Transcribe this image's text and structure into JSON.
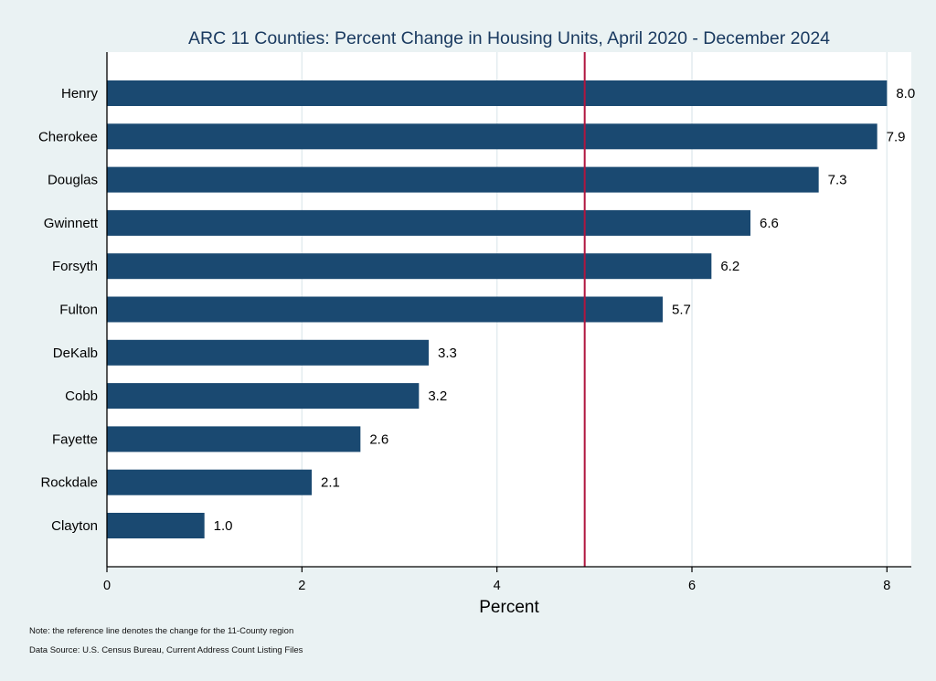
{
  "chart_data": {
    "type": "bar",
    "orientation": "horizontal",
    "title": "ARC 11 Counties: Percent Change in Housing Units, April 2020 - December 2024",
    "xlabel": "Percent",
    "ylabel": "",
    "categories": [
      "Henry",
      "Cherokee",
      "Douglas",
      "Gwinnett",
      "Forsyth",
      "Fulton",
      "DeKalb",
      "Cobb",
      "Fayette",
      "Rockdale",
      "Clayton"
    ],
    "values": [
      8.0,
      7.9,
      7.3,
      6.6,
      6.2,
      5.7,
      3.3,
      3.2,
      2.6,
      2.1,
      1.0
    ],
    "data_labels": [
      "8.0",
      "7.9",
      "7.3",
      "6.6",
      "6.2",
      "5.7",
      "3.3",
      "3.2",
      "2.6",
      "2.1",
      "1.0"
    ],
    "xlim": [
      0,
      8.25
    ],
    "xticks": [
      0,
      2,
      4,
      6,
      8
    ],
    "reference_line": 4.9,
    "grid": "vertical",
    "bar_color": "#1a4971",
    "reference_color": "#b0163f"
  },
  "notes": {
    "reference": "Note: the reference line denotes the change for the 11-County region",
    "source": "Data Source: U.S. Census Bureau, Current Address Count Listing Files"
  }
}
